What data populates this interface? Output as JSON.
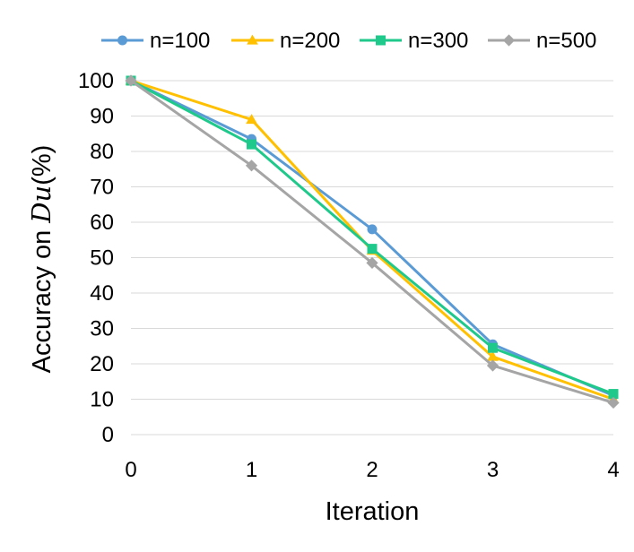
{
  "chart_data": {
    "type": "line",
    "title": "",
    "xlabel": "Iteration",
    "ylabel": {
      "prefix": "Accuracy on ",
      "script": "Du",
      "suffix": "(%)"
    },
    "x": [
      0,
      1,
      2,
      3,
      4
    ],
    "xlim": [
      0,
      4
    ],
    "ylim": [
      0,
      100
    ],
    "yticks": [
      0,
      10,
      20,
      30,
      40,
      50,
      60,
      70,
      80,
      90,
      100
    ],
    "grid": "horizontal",
    "legend_position": "top",
    "series": [
      {
        "name": "n=100",
        "marker": "circle",
        "color": "#5b9bd5",
        "values": [
          100,
          83.5,
          58,
          25.5,
          11
        ]
      },
      {
        "name": "n=200",
        "marker": "triangle",
        "color": "#ffc000",
        "values": [
          100,
          89,
          52,
          22,
          10
        ]
      },
      {
        "name": "n=300",
        "marker": "square",
        "color": "#1fc98b",
        "values": [
          100,
          82,
          52.5,
          24.5,
          11.5
        ]
      },
      {
        "name": "n=500",
        "marker": "diamond",
        "color": "#a5a5a5",
        "values": [
          100,
          76,
          48.5,
          19.5,
          9
        ]
      }
    ]
  }
}
